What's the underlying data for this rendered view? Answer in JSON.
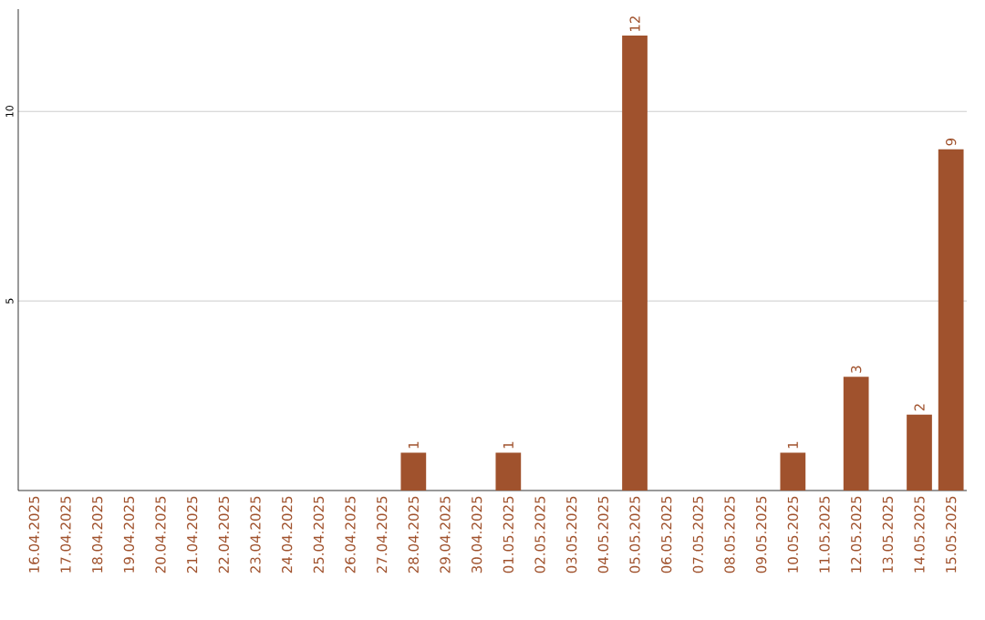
{
  "chart_data": {
    "type": "bar",
    "categories": [
      "16.04.2025",
      "17.04.2025",
      "18.04.2025",
      "19.04.2025",
      "20.04.2025",
      "21.04.2025",
      "22.04.2025",
      "23.04.2025",
      "24.04.2025",
      "25.04.2025",
      "26.04.2025",
      "27.04.2025",
      "28.04.2025",
      "29.04.2025",
      "30.04.2025",
      "01.05.2025",
      "02.05.2025",
      "03.05.2025",
      "04.05.2025",
      "05.05.2025",
      "06.05.2025",
      "07.05.2025",
      "08.05.2025",
      "09.05.2025",
      "10.05.2025",
      "11.05.2025",
      "12.05.2025",
      "13.05.2025",
      "14.05.2025",
      "15.05.2025"
    ],
    "values": [
      0,
      0,
      0,
      0,
      0,
      0,
      0,
      0,
      0,
      0,
      0,
      0,
      1,
      0,
      0,
      1,
      0,
      0,
      0,
      12,
      0,
      0,
      0,
      0,
      1,
      0,
      3,
      0,
      2,
      9
    ],
    "value_labels": [
      null,
      null,
      null,
      null,
      null,
      null,
      null,
      null,
      null,
      null,
      null,
      null,
      "1",
      null,
      null,
      "1",
      null,
      null,
      null,
      "12",
      null,
      null,
      null,
      null,
      "1",
      null,
      "3",
      null,
      "2",
      "9"
    ],
    "color": "#a0522d",
    "ylim": [
      0,
      12.7
    ],
    "yticks": [
      5,
      10
    ],
    "grid": "y"
  }
}
